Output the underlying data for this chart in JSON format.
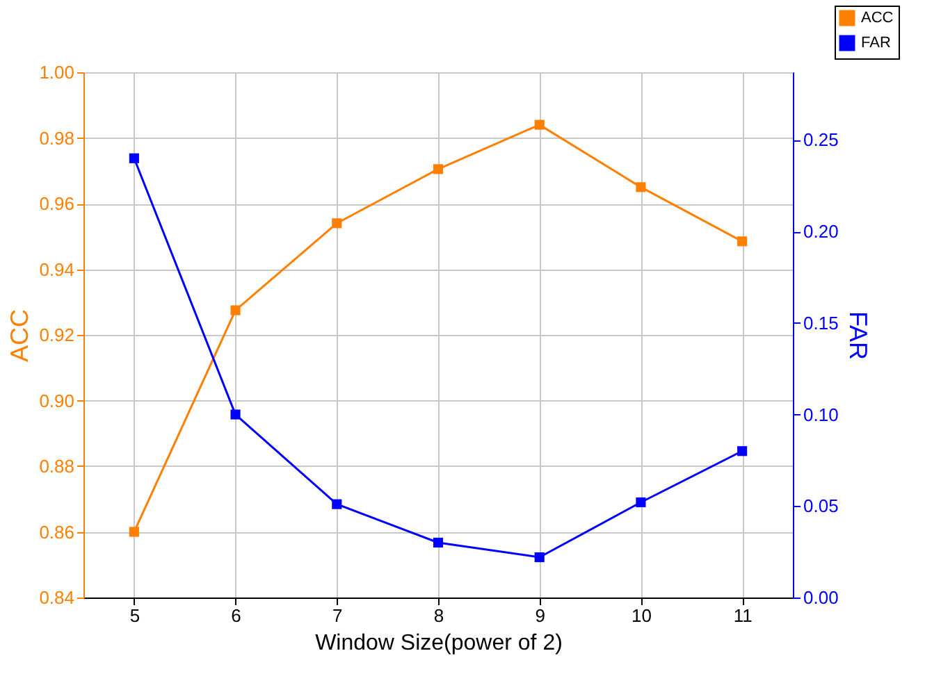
{
  "chart_data": {
    "type": "line",
    "xlabel": "Window Size(power of 2)",
    "ylabel": "ACC",
    "y2label": "FAR",
    "x": [
      5,
      6,
      7,
      8,
      9,
      10,
      11
    ],
    "series": [
      {
        "name": "ACC",
        "color": "#ff8000",
        "values": [
          0.86,
          0.9275,
          0.954,
          0.9705,
          0.984,
          0.965,
          0.9485
        ]
      },
      {
        "name": "FAR",
        "color": "#0000ff",
        "axis": "y2",
        "values": [
          0.24,
          0.1,
          0.051,
          0.03,
          0.022,
          0.052,
          0.08
        ]
      }
    ],
    "xlim": [
      4.5,
      11.5
    ],
    "xticks": [
      5,
      6,
      7,
      8,
      9,
      10,
      11
    ],
    "ylim": [
      0.84,
      1.0
    ],
    "yticks": [
      0.84,
      0.86,
      0.88,
      {
        "value": 0.9,
        "label": "0.90"
      },
      0.92,
      0.94,
      0.96,
      0.98,
      {
        "value": 1,
        "label": "1.00"
      }
    ],
    "y2lim": [
      0,
      0.287
    ],
    "y2ticks": [
      {
        "value": 0,
        "label": "0.00"
      },
      0.05,
      {
        "value": 0.1,
        "label": "0.10"
      },
      0.15,
      {
        "value": 0.2,
        "label": "0.20"
      },
      0.25
    ],
    "grid": true,
    "legend": "top right",
    "marker": "square",
    "line_style": "solid"
  }
}
